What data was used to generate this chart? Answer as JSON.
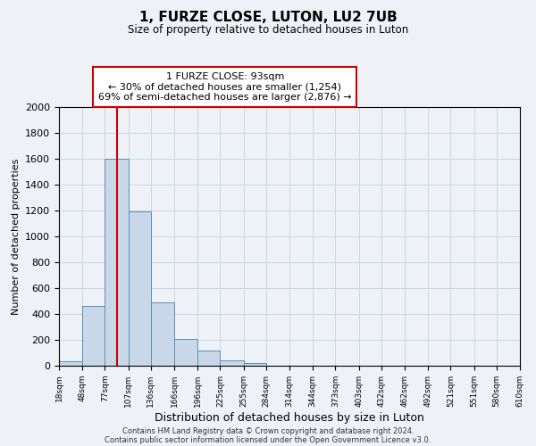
{
  "title": "1, FURZE CLOSE, LUTON, LU2 7UB",
  "subtitle": "Size of property relative to detached houses in Luton",
  "xlabel": "Distribution of detached houses by size in Luton",
  "ylabel": "Number of detached properties",
  "bar_edges": [
    18,
    48,
    77,
    107,
    136,
    166,
    196,
    225,
    255,
    284,
    314,
    344,
    373,
    403,
    432,
    462,
    492,
    521,
    551,
    580,
    610
  ],
  "bar_heights": [
    35,
    460,
    1600,
    1190,
    490,
    210,
    115,
    40,
    20,
    0,
    0,
    0,
    0,
    0,
    0,
    0,
    0,
    0,
    0,
    0
  ],
  "bar_color": "#c8d8e8",
  "bar_edge_color": "#5b8db8",
  "vline_x": 93,
  "vline_color": "#cc0000",
  "annotation_title": "1 FURZE CLOSE: 93sqm",
  "annotation_line1": "← 30% of detached houses are smaller (1,254)",
  "annotation_line2": "69% of semi-detached houses are larger (2,876) →",
  "annotation_box_color": "#ffffff",
  "annotation_box_edge_color": "#cc0000",
  "ylim": [
    0,
    2000
  ],
  "footer1": "Contains HM Land Registry data © Crown copyright and database right 2024.",
  "footer2": "Contains public sector information licensed under the Open Government Licence v3.0.",
  "tick_labels": [
    "18sqm",
    "48sqm",
    "77sqm",
    "107sqm",
    "136sqm",
    "166sqm",
    "196sqm",
    "225sqm",
    "255sqm",
    "284sqm",
    "314sqm",
    "344sqm",
    "373sqm",
    "403sqm",
    "432sqm",
    "462sqm",
    "492sqm",
    "521sqm",
    "551sqm",
    "580sqm",
    "610sqm"
  ],
  "background_color": "#eef2f7",
  "grid_color": "#c8d0dc",
  "yticks": [
    0,
    200,
    400,
    600,
    800,
    1000,
    1200,
    1400,
    1600,
    1800,
    2000
  ]
}
